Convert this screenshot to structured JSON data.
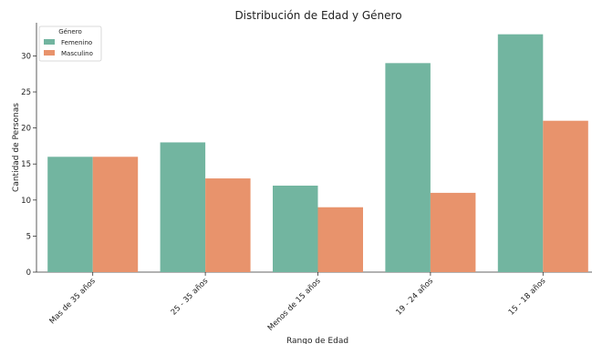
{
  "chart_data": {
    "type": "bar",
    "title": "Distribución de Edad y Género",
    "xlabel": "Rango de Edad",
    "ylabel": "Cantidad de Personas",
    "categories": [
      "Mas de 35 años",
      "25 - 35 años",
      "Menos de 15 años",
      "19 - 24 años",
      "15 - 18 años"
    ],
    "series": [
      {
        "name": "Femenino",
        "values": [
          16,
          18,
          12,
          29,
          33
        ],
        "color": "#72b5a0"
      },
      {
        "name": "Masculino",
        "values": [
          16,
          13,
          9,
          11,
          21
        ],
        "color": "#e8936c"
      }
    ],
    "ylim": [
      0,
      34.6
    ],
    "yticks": [
      0,
      5,
      10,
      15,
      20,
      25,
      30
    ],
    "legend": {
      "title": "Género",
      "placement": "top-left"
    },
    "grid": false
  }
}
